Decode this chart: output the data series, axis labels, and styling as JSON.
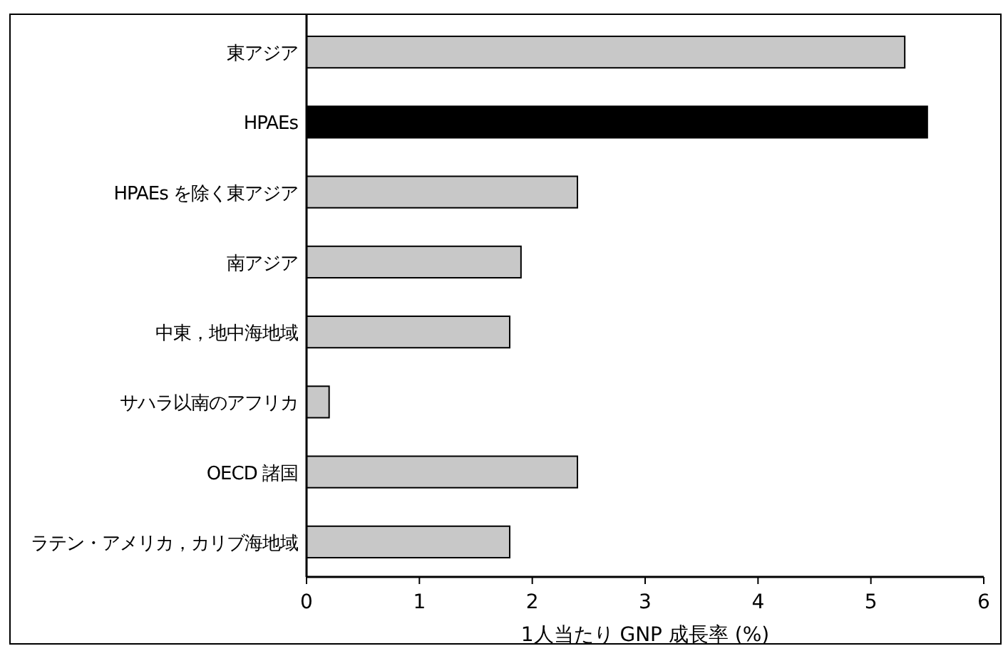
{
  "chart_data": {
    "type": "bar",
    "orientation": "horizontal",
    "xlabel": "1人当たり GNP 成長率 (%)",
    "categories": [
      "東アジア",
      "HPAEs",
      "HPAEs を除く東アジア",
      "南アジア",
      "中東，地中海地域",
      "サハラ以南のアフリカ",
      "OECD 諸国",
      "ラテン・アメリカ，カリブ海地域"
    ],
    "values": [
      5.3,
      5.5,
      2.4,
      1.9,
      1.8,
      0.2,
      2.4,
      1.8
    ],
    "colors": [
      "#c8c8c8",
      "#000000",
      "#c8c8c8",
      "#c8c8c8",
      "#c8c8c8",
      "#c8c8c8",
      "#c8c8c8",
      "#c8c8c8"
    ],
    "xlim": [
      0,
      6
    ],
    "xticks": [
      0,
      1,
      2,
      3,
      4,
      5,
      6
    ]
  }
}
